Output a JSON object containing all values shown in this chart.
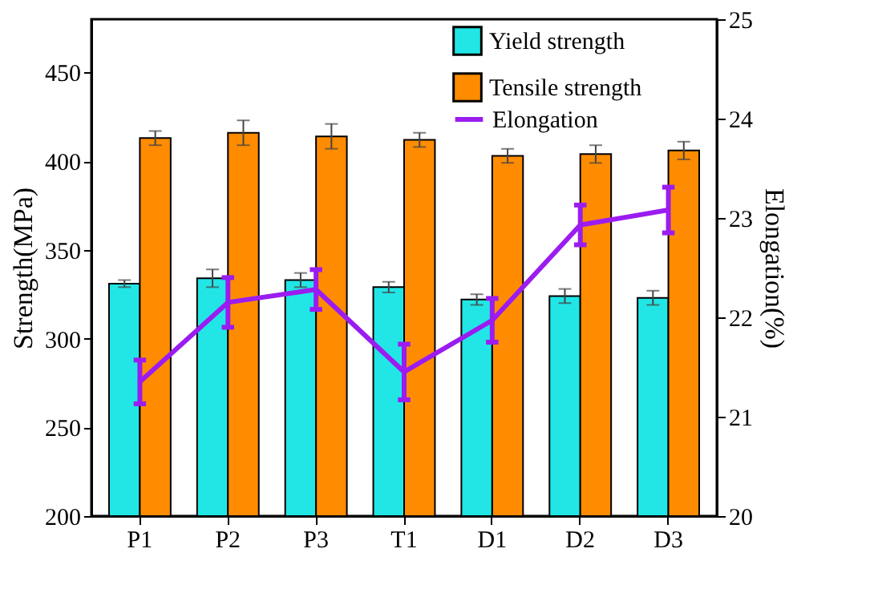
{
  "chart_data": {
    "type": "bar",
    "categories": [
      "P1",
      "P2",
      "P3",
      "T1",
      "D1",
      "D2",
      "D3"
    ],
    "ylabel": "Strength(MPa)",
    "y2label": "Elongation(%)",
    "ylim": [
      200,
      480
    ],
    "yticks": [
      200,
      250,
      300,
      350,
      400,
      450
    ],
    "y2lim": [
      20,
      25
    ],
    "y2ticks": [
      20,
      21,
      22,
      23,
      24,
      25
    ],
    "legend": "top right",
    "grid": false,
    "series": [
      {
        "name": "Yield strength",
        "color": "#22e6e6",
        "values": [
          331,
          334,
          333,
          329,
          322,
          324,
          323
        ],
        "errors": [
          2,
          5,
          4,
          3,
          3,
          4,
          4
        ]
      },
      {
        "name": "Tensile strength",
        "color": "#ff8c00",
        "values": [
          413,
          416,
          414,
          412,
          403,
          404,
          406
        ],
        "errors": [
          4,
          7,
          7,
          4,
          4,
          5,
          5
        ]
      },
      {
        "name": "Elongation",
        "type": "line",
        "axis": "y2",
        "color": "#9b1cf0",
        "values": [
          21.35,
          22.15,
          22.28,
          21.45,
          21.97,
          22.93,
          23.08
        ],
        "errors": [
          0.22,
          0.25,
          0.2,
          0.28,
          0.22,
          0.2,
          0.23
        ]
      }
    ]
  }
}
